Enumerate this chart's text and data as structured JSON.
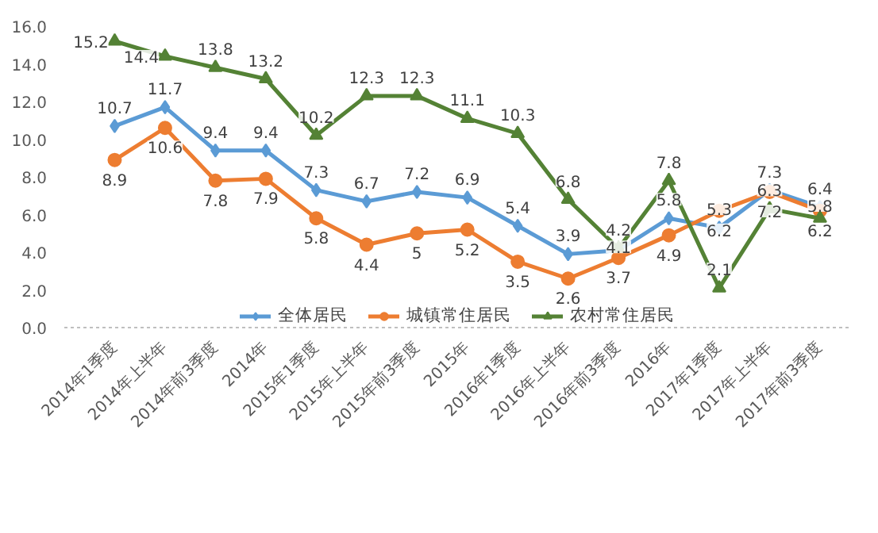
{
  "chart_data": {
    "type": "line",
    "categories": [
      "2014年1季度",
      "2014年上半年",
      "2014年前3季度",
      "2014年",
      "2015年1季度",
      "2015年上半年",
      "2015年前3季度",
      "2015年",
      "2016年1季度",
      "2016年上半年",
      "2016年前3季度",
      "2016年",
      "2017年1季度",
      "2017年上半年",
      "2017年前3季度"
    ],
    "series": [
      {
        "name": "全体居民",
        "color": "#5b9bd5",
        "marker": "diamond",
        "values": [
          10.7,
          11.7,
          9.4,
          9.4,
          7.3,
          6.7,
          7.2,
          6.9,
          5.4,
          3.9,
          4.1,
          5.8,
          5.3,
          7.3,
          6.4
        ]
      },
      {
        "name": "城镇常住居民",
        "color": "#ed7d31",
        "marker": "circle",
        "values": [
          8.9,
          10.6,
          7.8,
          7.9,
          5.8,
          4.4,
          5,
          5.2,
          3.5,
          2.6,
          3.7,
          4.9,
          6.2,
          7.2,
          6.2
        ]
      },
      {
        "name": "农村常住居民",
        "color": "#548235",
        "marker": "triangle",
        "values": [
          15.2,
          14.4,
          13.8,
          13.2,
          10.2,
          12.3,
          12.3,
          11.1,
          10.3,
          6.8,
          4.2,
          7.8,
          2.1,
          6.3,
          5.8
        ]
      }
    ],
    "ylim": [
      0,
      16
    ],
    "yticks": [
      {
        "value": 0,
        "label": "0.0"
      },
      {
        "value": 2,
        "label": "2.0"
      },
      {
        "value": 4,
        "label": "4.0"
      },
      {
        "value": 6,
        "label": "6.0"
      },
      {
        "value": 8,
        "label": "8.0"
      },
      {
        "value": 10,
        "label": "10.0"
      },
      {
        "value": 12,
        "label": "12.0"
      },
      {
        "value": 14,
        "label": "14.0"
      },
      {
        "value": 16,
        "label": "16.0"
      }
    ],
    "grid": false,
    "legend": "bottom",
    "data_labels": true
  }
}
